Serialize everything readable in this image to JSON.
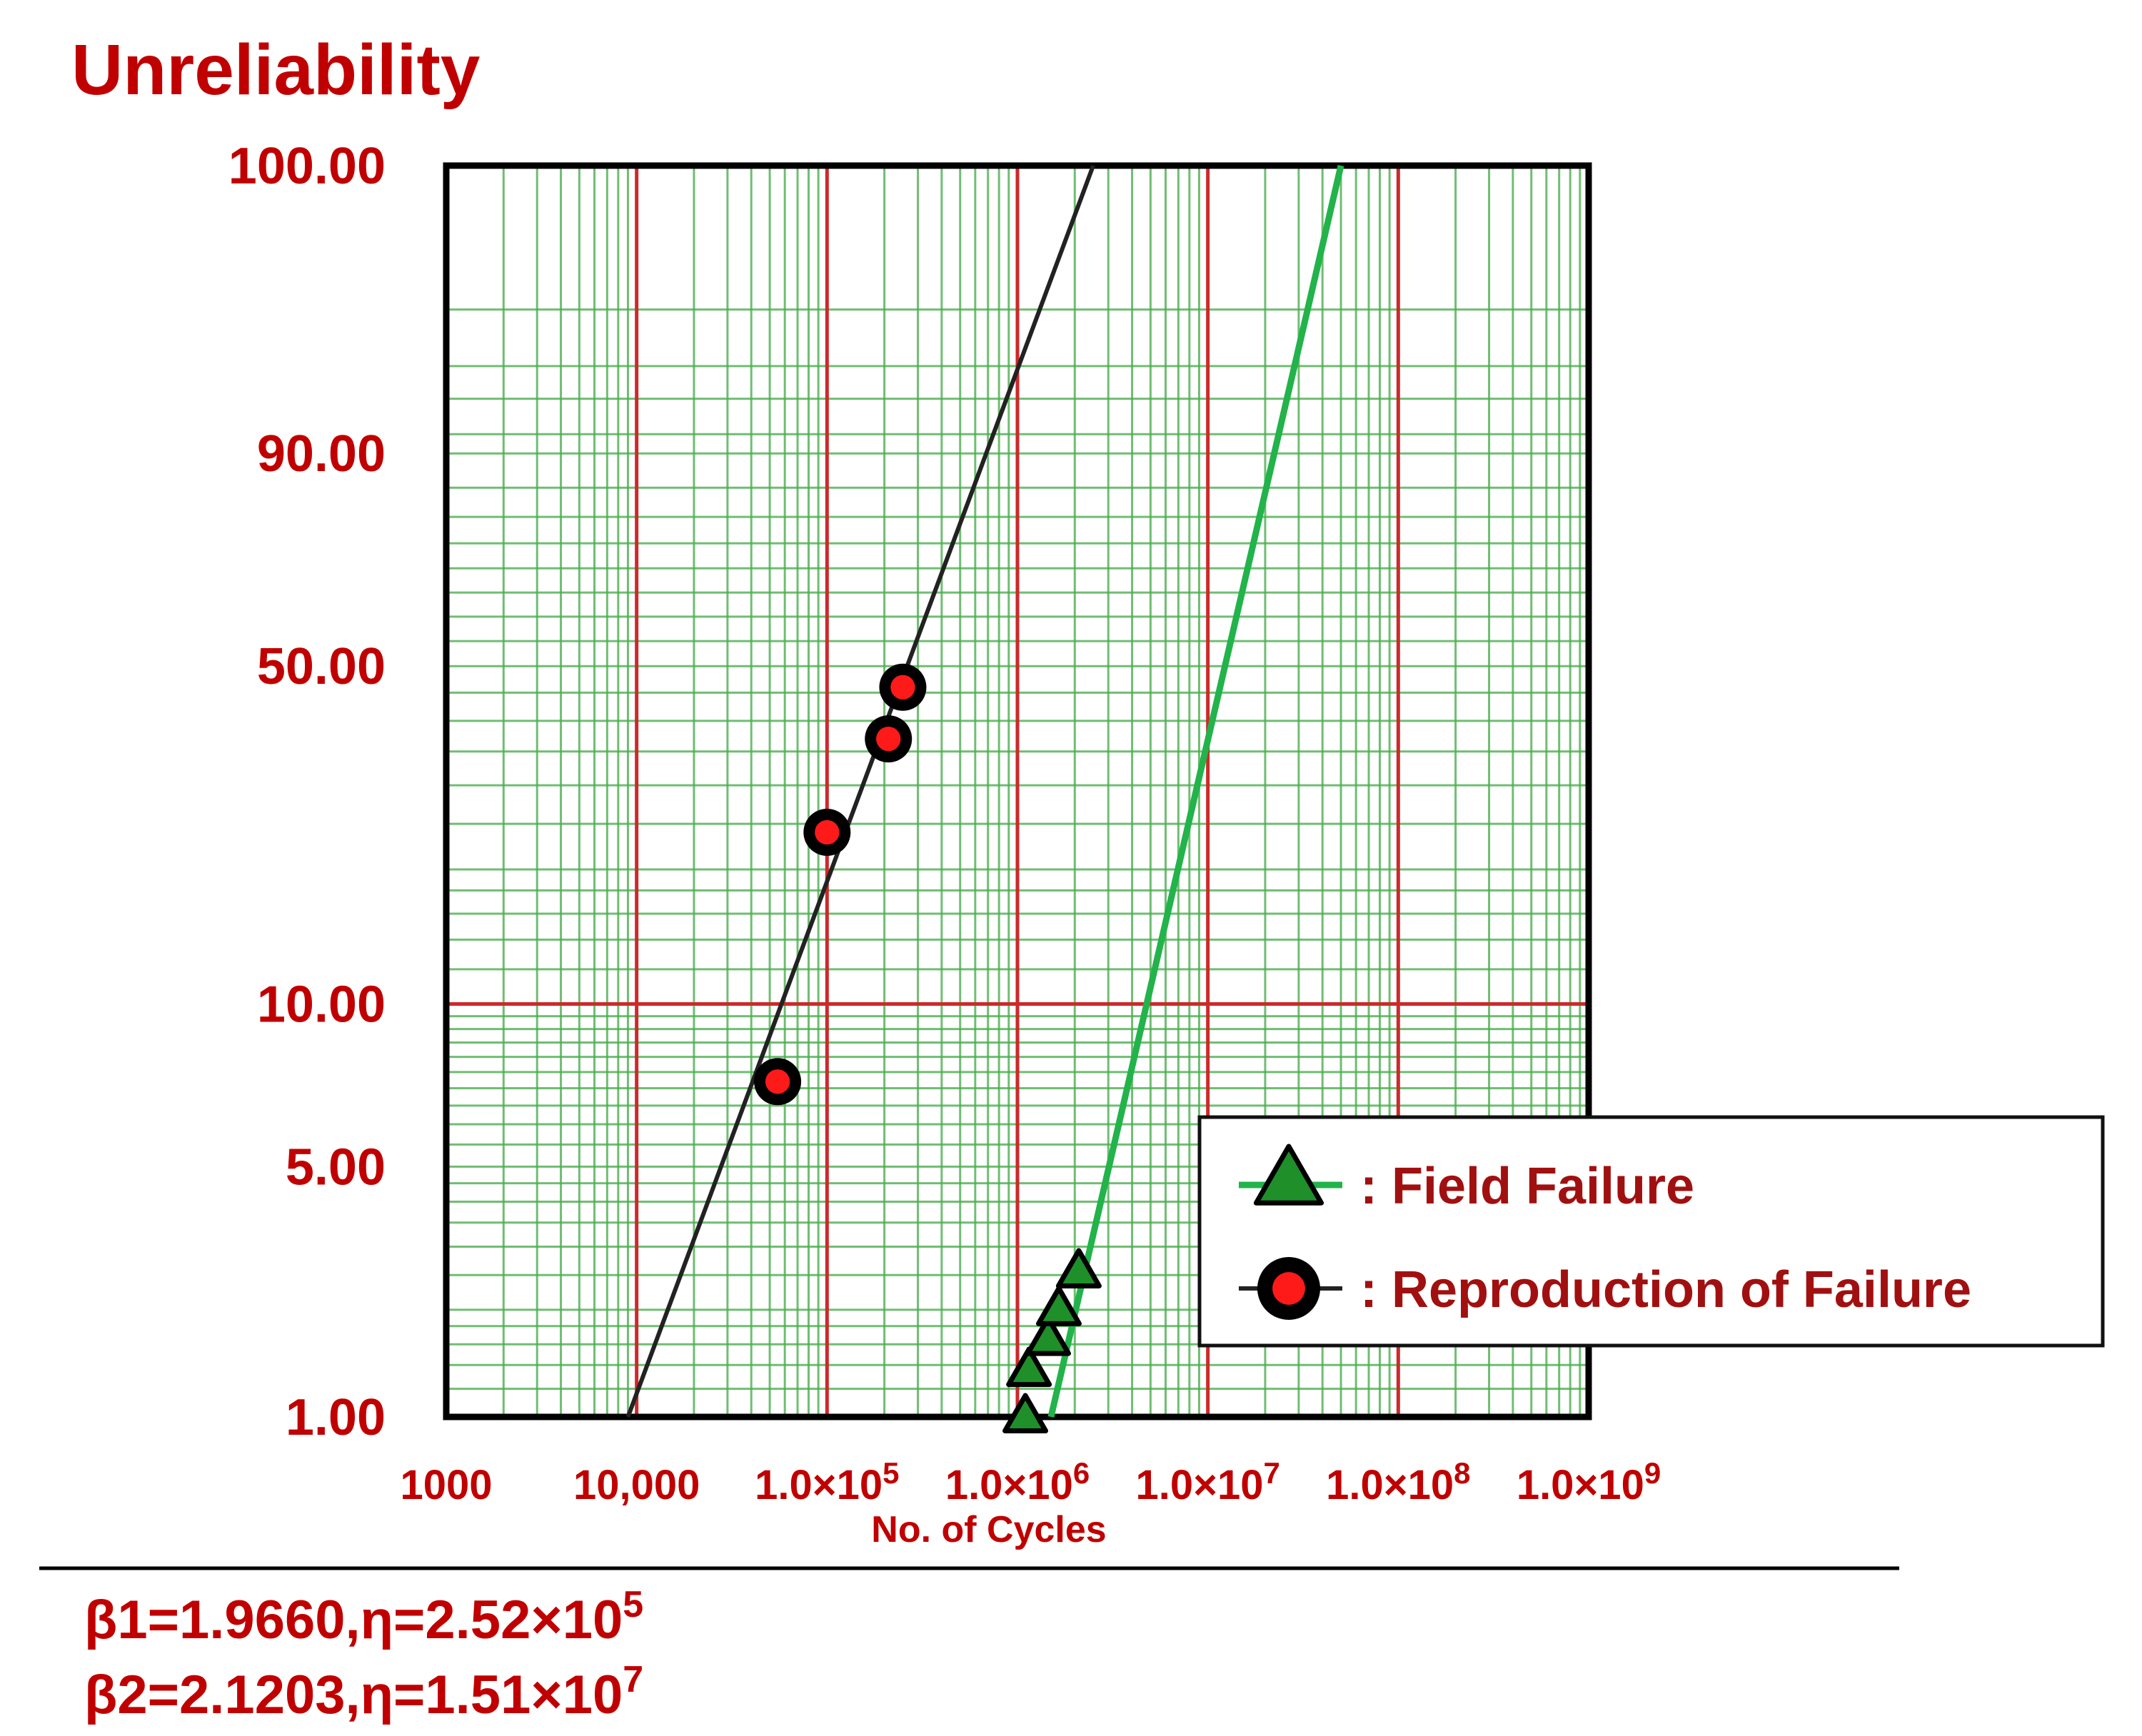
{
  "chart_data": {
    "type": "scatter",
    "title": "Unreliability",
    "xlabel": "No. of Cycles",
    "ylabel": "",
    "x_scale": "log",
    "y_scale": "weibull",
    "xlim": [
      1000,
      1000000000
    ],
    "ylim": [
      1.0,
      100.0
    ],
    "x_tick_labels": [
      {
        "value": 1000,
        "base": "1000",
        "exp": ""
      },
      {
        "value": 10000,
        "base": "10,000",
        "exp": ""
      },
      {
        "value": 100000,
        "base": "1.0×10",
        "exp": "5"
      },
      {
        "value": 1000000,
        "base": "1.0×10",
        "exp": "6"
      },
      {
        "value": 10000000,
        "base": "1.0×10",
        "exp": "7"
      },
      {
        "value": 100000000,
        "base": "1.0×10",
        "exp": "8"
      },
      {
        "value": 1000000000,
        "base": "1.0×10",
        "exp": "9"
      }
    ],
    "y_tick_labels": [
      {
        "value": 100.0,
        "label": "100.00"
      },
      {
        "value": 90.0,
        "label": "90.00"
      },
      {
        "value": 50.0,
        "label": "50.00"
      },
      {
        "value": 10.0,
        "label": "10.00"
      },
      {
        "value": 5.0,
        "label": "5.00"
      },
      {
        "value": 1.0,
        "label": "1.00"
      }
    ],
    "grid": true,
    "legend_position": "bottom-right",
    "series": [
      {
        "name": ": Field Failure",
        "marker": "triangle",
        "color": "#1f8f2a",
        "line_color": "#22b34a",
        "points": [
          {
            "x": 1100000,
            "y": 1.0
          },
          {
            "x": 1150000,
            "y": 1.35
          },
          {
            "x": 1450000,
            "y": 1.65
          },
          {
            "x": 1650000,
            "y": 2.0
          },
          {
            "x": 2100000,
            "y": 2.55
          }
        ],
        "fit_line": [
          {
            "x": 1500000,
            "y": 1.0
          },
          {
            "x": 50000000,
            "y": 99.99
          }
        ]
      },
      {
        "name": ": Reproduction of Failure",
        "marker": "circle",
        "color": "#ff1a1a",
        "line_color": "#222222",
        "points": [
          {
            "x": 55000,
            "y": 7.2
          },
          {
            "x": 100000,
            "y": 24.0
          },
          {
            "x": 210000,
            "y": 37.0
          },
          {
            "x": 250000,
            "y": 46.0
          }
        ],
        "fit_line": [
          {
            "x": 9000,
            "y": 1.0
          },
          {
            "x": 2500000,
            "y": 99.99
          }
        ]
      }
    ]
  },
  "parameters": [
    {
      "prefix": "β1=1.9660,η=2.52×10",
      "exp": "5"
    },
    {
      "prefix": "β2=2.1203,η=1.51×10",
      "exp": "7"
    }
  ],
  "colors": {
    "label_red": "#c00000",
    "major_grid": "#cc2a2a",
    "minor_grid": "#4caf50"
  }
}
